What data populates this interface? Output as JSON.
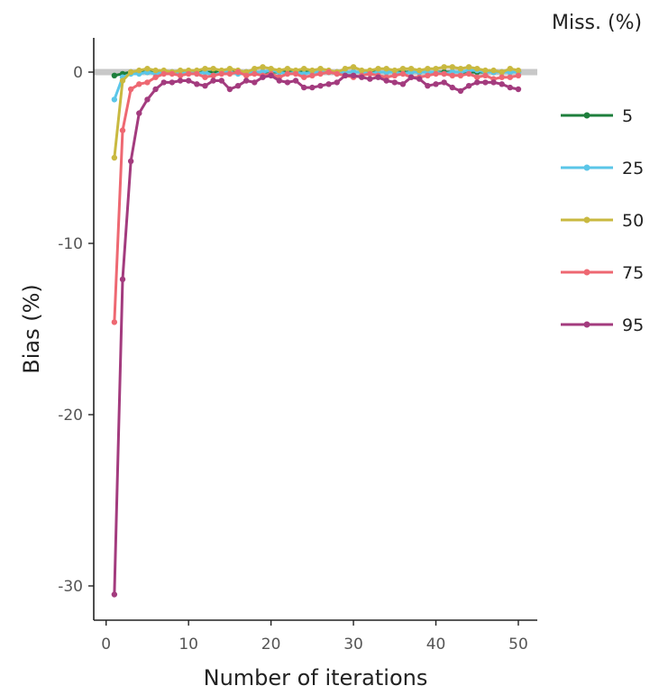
{
  "chart_data": {
    "type": "line",
    "xlabel": "Number of iterations",
    "ylabel": "Bias (%)",
    "xlim": [
      -1.5,
      52.3
    ],
    "ylim": [
      -32,
      2
    ],
    "xticks": [
      0,
      10,
      20,
      30,
      40,
      50
    ],
    "yticks": [
      0,
      -10,
      -20,
      -30
    ],
    "reference_line": 0,
    "grid": false,
    "legend": {
      "title": "Miss. (%)",
      "placement": "right"
    },
    "series": [
      {
        "name": "5",
        "color": "#1e7f3c",
        "values": [
          -0.2,
          -0.1,
          0.0,
          0.0,
          0.0,
          0.0,
          0.0,
          0.0,
          0.0,
          0.0,
          0.0,
          0.0,
          0.0,
          0.0,
          0.0,
          0.0,
          0.0,
          0.0,
          0.0,
          0.0,
          0.0,
          0.0,
          0.0,
          0.0,
          0.0,
          0.0,
          0.0,
          0.0,
          0.0,
          0.0,
          0.0,
          0.0,
          0.0,
          0.0,
          0.0,
          0.0,
          0.0,
          0.0,
          0.0,
          0.0,
          0.0,
          0.0,
          0.0,
          0.0,
          0.0,
          0.0,
          0.0,
          0.0,
          0.0,
          0.0
        ]
      },
      {
        "name": "25",
        "color": "#5bc6e8",
        "values": [
          -1.6,
          -0.3,
          -0.1,
          -0.1,
          0.0,
          -0.1,
          0.0,
          0.0,
          -0.1,
          0.0,
          -0.1,
          0.0,
          -0.2,
          0.0,
          0.0,
          -0.1,
          -0.1,
          0.0,
          0.0,
          0.1,
          0.0,
          -0.1,
          0.0,
          -0.1,
          0.0,
          0.0,
          0.0,
          -0.1,
          0.0,
          0.0,
          0.0,
          -0.1,
          0.0,
          0.0,
          0.0,
          -0.1,
          0.0,
          0.0,
          0.0,
          0.0,
          -0.1,
          0.0,
          0.0,
          0.1,
          0.1,
          0.0,
          0.0,
          0.0,
          0.0,
          0.0
        ]
      },
      {
        "name": "50",
        "color": "#c9b940",
        "values": [
          -5.0,
          -0.5,
          0.0,
          0.1,
          0.2,
          0.1,
          0.1,
          0.0,
          0.1,
          0.1,
          0.1,
          0.2,
          0.2,
          0.1,
          0.2,
          0.1,
          0.0,
          0.2,
          0.3,
          0.2,
          0.1,
          0.2,
          0.1,
          0.2,
          0.1,
          0.2,
          0.1,
          0.0,
          0.2,
          0.3,
          0.1,
          0.1,
          0.2,
          0.2,
          0.1,
          0.2,
          0.2,
          0.1,
          0.2,
          0.2,
          0.3,
          0.3,
          0.2,
          0.3,
          0.2,
          0.1,
          0.1,
          0.0,
          0.2,
          0.1
        ]
      },
      {
        "name": "75",
        "color": "#ee6872",
        "values": [
          -14.6,
          -3.4,
          -1.0,
          -0.7,
          -0.6,
          -0.3,
          -0.1,
          -0.1,
          -0.2,
          -0.1,
          -0.1,
          -0.3,
          -0.2,
          -0.1,
          -0.1,
          0.0,
          -0.2,
          -0.1,
          -0.2,
          -0.1,
          -0.3,
          -0.1,
          -0.1,
          -0.3,
          -0.2,
          -0.1,
          0.0,
          -0.1,
          -0.2,
          -0.3,
          -0.2,
          -0.1,
          -0.2,
          -0.3,
          -0.2,
          -0.1,
          -0.3,
          -0.3,
          -0.2,
          -0.1,
          -0.1,
          -0.2,
          -0.2,
          -0.1,
          -0.3,
          -0.2,
          -0.4,
          -0.3,
          -0.3,
          -0.2
        ]
      },
      {
        "name": "95",
        "color": "#a33b7e",
        "values": [
          -30.5,
          -12.1,
          -5.2,
          -2.4,
          -1.6,
          -1.0,
          -0.6,
          -0.6,
          -0.5,
          -0.5,
          -0.7,
          -0.8,
          -0.5,
          -0.5,
          -1.0,
          -0.8,
          -0.5,
          -0.6,
          -0.3,
          -0.2,
          -0.5,
          -0.6,
          -0.5,
          -0.9,
          -0.9,
          -0.8,
          -0.7,
          -0.6,
          -0.2,
          -0.2,
          -0.3,
          -0.4,
          -0.3,
          -0.5,
          -0.6,
          -0.7,
          -0.3,
          -0.4,
          -0.8,
          -0.7,
          -0.6,
          -0.9,
          -1.1,
          -0.8,
          -0.6,
          -0.6,
          -0.6,
          -0.7,
          -0.9,
          -1.0
        ]
      }
    ]
  }
}
